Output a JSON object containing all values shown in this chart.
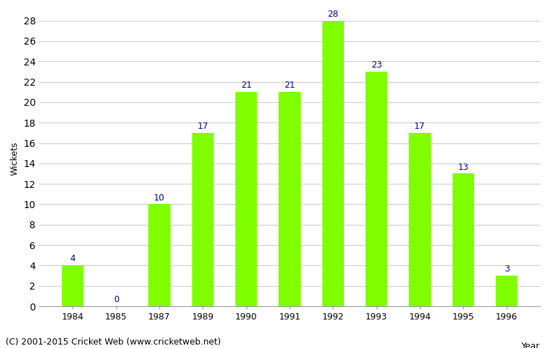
{
  "years": [
    "1984",
    "1985",
    "1987",
    "1989",
    "1990",
    "1991",
    "1992",
    "1993",
    "1994",
    "1995",
    "1996"
  ],
  "values": [
    4,
    0,
    10,
    17,
    21,
    21,
    28,
    23,
    17,
    13,
    3
  ],
  "bar_color": "#7FFF00",
  "bar_edge_color": "#7FFF00",
  "label_color": "#00008B",
  "ylabel": "Wickets",
  "xlabel": "Year",
  "ylim": [
    0,
    29
  ],
  "yticks": [
    0,
    2,
    4,
    6,
    8,
    10,
    12,
    14,
    16,
    18,
    20,
    22,
    24,
    26,
    28
  ],
  "grid_color": "#cccccc",
  "bg_color": "#ffffff",
  "footer": "(C) 2001-2015 Cricket Web (www.cricketweb.net)",
  "label_fontsize": 9,
  "axis_tick_fontsize": 9,
  "axis_label_fontsize": 9,
  "footer_fontsize": 9,
  "bar_width": 0.5
}
